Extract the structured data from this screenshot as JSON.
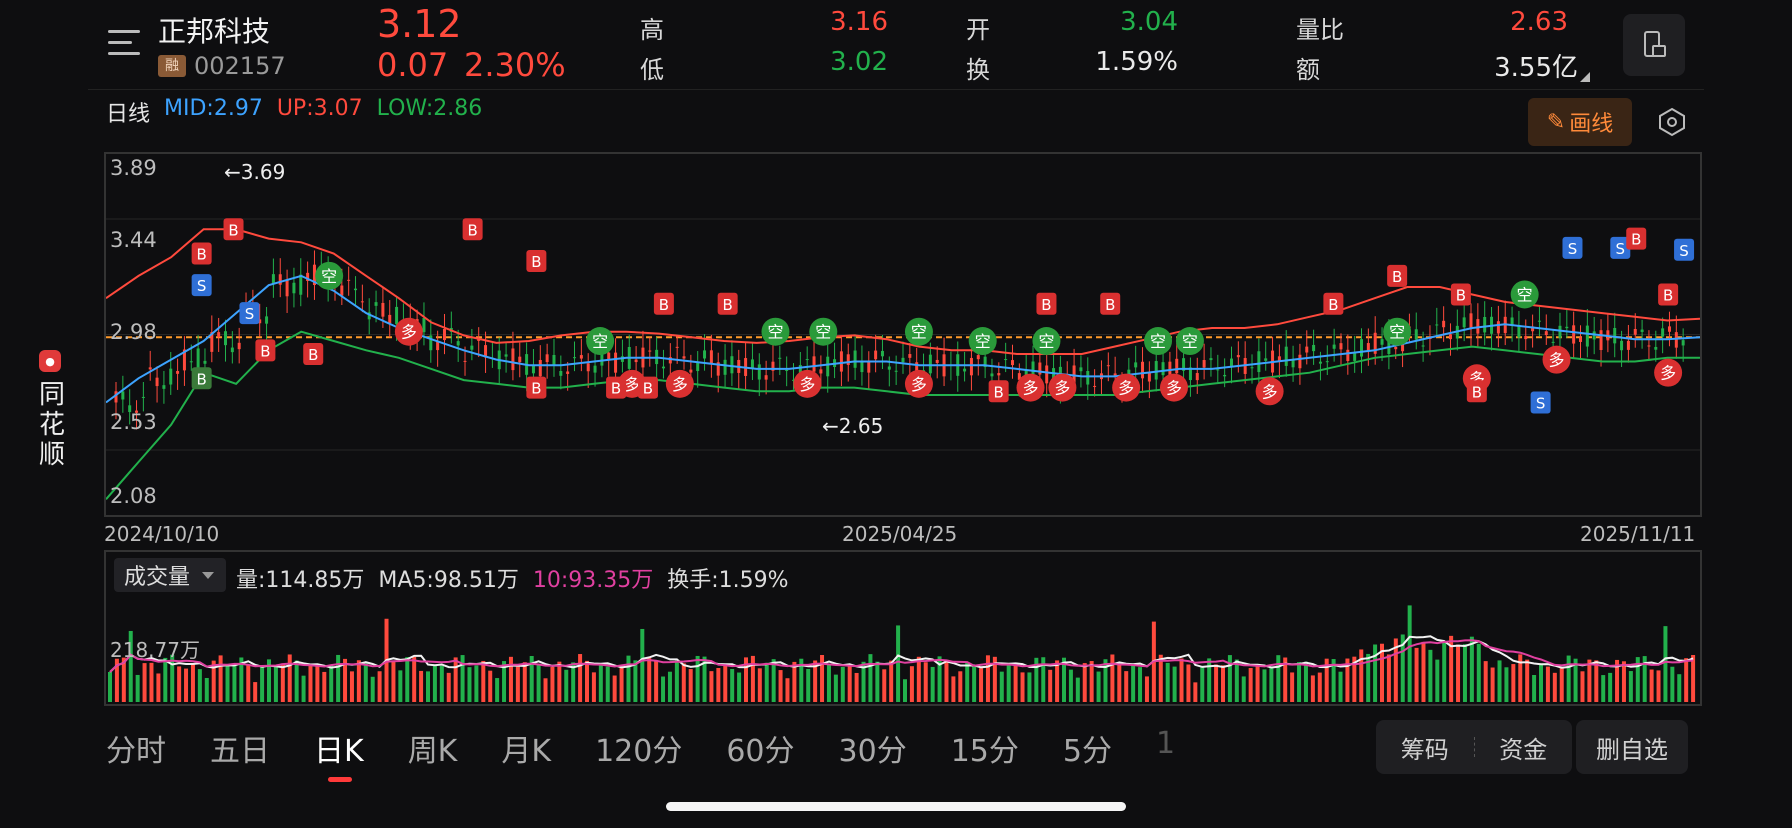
{
  "brand": {
    "name": "同花顺"
  },
  "header": {
    "stock_name": "正邦科技",
    "badge": "融",
    "code": "002157",
    "price": "3.12",
    "change": "0.07",
    "change_pct": "2.30%",
    "stats": [
      {
        "label": "高",
        "value": "3.16",
        "color": "#ff4a3d"
      },
      {
        "label": "低",
        "value": "3.02",
        "color": "#22b14c"
      },
      {
        "label": "开",
        "value": "3.04",
        "color": "#22b14c"
      },
      {
        "label": "换",
        "value": "1.59%",
        "color": "#eaeaea"
      },
      {
        "label": "量比",
        "value": "2.63",
        "color": "#ff4a3d"
      },
      {
        "label": "额",
        "value": "3.55亿",
        "color": "#eaeaea"
      }
    ]
  },
  "indicator": {
    "period_label": "日线",
    "mid": "MID:2.97",
    "up": "UP:3.07",
    "low": "LOW:2.86",
    "draw_label": "画线"
  },
  "chart_data": {
    "type": "line",
    "y_ticks": [
      "3.89",
      "3.44",
      "2.98",
      "2.53",
      "2.08"
    ],
    "x_ticks": [
      "2024/10/10",
      "2025/04/25",
      "2025/11/11"
    ],
    "ylim": [
      2.08,
      3.89
    ],
    "high_label": "3.69",
    "low_label": "2.65",
    "current_price": 3.12,
    "series": [
      {
        "name": "MID",
        "color": "#3da3ff",
        "values": [
          2.62,
          2.75,
          2.85,
          2.95,
          3.1,
          3.25,
          3.3,
          3.22,
          3.1,
          3.02,
          2.96,
          2.9,
          2.85,
          2.82,
          2.82,
          2.84,
          2.86,
          2.86,
          2.84,
          2.82,
          2.8,
          2.8,
          2.82,
          2.84,
          2.84,
          2.82,
          2.82,
          2.82,
          2.8,
          2.78,
          2.76,
          2.76,
          2.78,
          2.8,
          2.8,
          2.82,
          2.84,
          2.86,
          2.88,
          2.9,
          2.94,
          2.98,
          3.02,
          3.04,
          3.02,
          3.0,
          2.98,
          2.96,
          2.96,
          2.97
        ]
      },
      {
        "name": "UP",
        "color": "#ff4a3d",
        "values": [
          3.18,
          3.3,
          3.4,
          3.55,
          3.55,
          3.5,
          3.48,
          3.42,
          3.3,
          3.18,
          3.05,
          2.98,
          2.94,
          2.95,
          2.98,
          3.0,
          3.0,
          2.99,
          2.97,
          2.95,
          2.94,
          2.95,
          2.97,
          2.98,
          2.96,
          2.92,
          2.9,
          2.9,
          2.88,
          2.88,
          2.88,
          2.92,
          2.96,
          3.0,
          3.02,
          3.02,
          3.04,
          3.08,
          3.12,
          3.18,
          3.24,
          3.24,
          3.2,
          3.16,
          3.14,
          3.12,
          3.1,
          3.08,
          3.06,
          3.07
        ]
      },
      {
        "name": "LOW",
        "color": "#22b14c",
        "values": [
          2.1,
          2.3,
          2.5,
          2.78,
          2.72,
          2.9,
          3.0,
          2.95,
          2.9,
          2.86,
          2.8,
          2.74,
          2.72,
          2.7,
          2.7,
          2.72,
          2.74,
          2.74,
          2.72,
          2.7,
          2.68,
          2.68,
          2.7,
          2.7,
          2.68,
          2.66,
          2.66,
          2.66,
          2.66,
          2.66,
          2.66,
          2.66,
          2.68,
          2.7,
          2.72,
          2.74,
          2.76,
          2.78,
          2.82,
          2.86,
          2.88,
          2.9,
          2.92,
          2.9,
          2.88,
          2.86,
          2.84,
          2.84,
          2.86,
          2.86
        ]
      }
    ]
  },
  "volume": {
    "selector_label": "成交量",
    "amount": "量:114.85万",
    "ma5": "MA5:98.51万",
    "ma10": "10:93.35万",
    "turnover": "换手:1.59%",
    "max_label": "218.77万"
  },
  "tabs": [
    "分时",
    "五日",
    "日K",
    "周K",
    "月K",
    "120分",
    "60分",
    "30分",
    "15分",
    "5分",
    "1"
  ],
  "active_tab": "日K",
  "buttons": {
    "chips": "筹码",
    "funds": "资金",
    "delete": "删自选"
  }
}
